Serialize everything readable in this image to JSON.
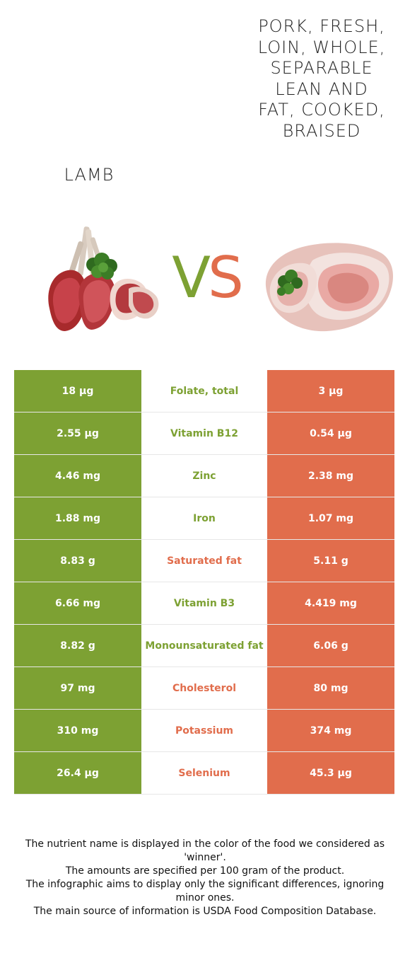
{
  "header": {
    "left_food": "Lamb",
    "right_food": "Pork, fresh, loin, whole, separable lean and fat, cooked, braised",
    "vs_v": "V",
    "vs_s": "S"
  },
  "colors": {
    "left": "#7da133",
    "right": "#e16d4c"
  },
  "rows": [
    {
      "left": "18 µg",
      "nutrient": "Folate, total",
      "right": "3 µg",
      "winner": "left"
    },
    {
      "left": "2.55 µg",
      "nutrient": "Vitamin B12",
      "right": "0.54 µg",
      "winner": "left"
    },
    {
      "left": "4.46 mg",
      "nutrient": "Zinc",
      "right": "2.38 mg",
      "winner": "left"
    },
    {
      "left": "1.88 mg",
      "nutrient": "Iron",
      "right": "1.07 mg",
      "winner": "left"
    },
    {
      "left": "8.83 g",
      "nutrient": "Saturated fat",
      "right": "5.11 g",
      "winner": "right"
    },
    {
      "left": "6.66 mg",
      "nutrient": "Vitamin B3",
      "right": "4.419 mg",
      "winner": "left"
    },
    {
      "left": "8.82 g",
      "nutrient": "Monounsaturated fat",
      "right": "6.06 g",
      "winner": "left"
    },
    {
      "left": "97 mg",
      "nutrient": "Cholesterol",
      "right": "80 mg",
      "winner": "right"
    },
    {
      "left": "310 mg",
      "nutrient": "Potassium",
      "right": "374 mg",
      "winner": "right"
    },
    {
      "left": "26.4 µg",
      "nutrient": "Selenium",
      "right": "45.3 µg",
      "winner": "right"
    }
  ],
  "footer": {
    "line1": "The nutrient name is displayed in the color of the food we considered as 'winner'.",
    "line2": "The amounts are specified per 100 gram of the product.",
    "line3": "The infographic aims to display only the significant differences, ignoring minor ones.",
    "line4": "The main source of information is USDA Food Composition Database."
  }
}
